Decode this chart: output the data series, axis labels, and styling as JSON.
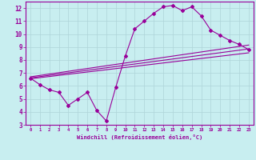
{
  "xlabel": "Windchill (Refroidissement éolien,°C)",
  "ylabel": "",
  "xlim": [
    -0.5,
    23.5
  ],
  "ylim": [
    3,
    12.5
  ],
  "xticks": [
    0,
    1,
    2,
    3,
    4,
    5,
    6,
    7,
    8,
    9,
    10,
    11,
    12,
    13,
    14,
    15,
    16,
    17,
    18,
    19,
    20,
    21,
    22,
    23
  ],
  "yticks": [
    3,
    4,
    5,
    6,
    7,
    8,
    9,
    10,
    11,
    12
  ],
  "background_color": "#c8eef0",
  "grid_color": "#aed4d8",
  "line_color": "#990099",
  "line1_x": [
    0,
    1,
    2,
    3,
    4,
    5,
    6,
    7,
    8,
    9,
    10,
    11,
    12,
    13,
    14,
    15,
    16,
    17,
    18,
    19,
    20,
    21,
    22,
    23
  ],
  "line1_y": [
    6.6,
    6.1,
    5.7,
    5.5,
    4.5,
    5.0,
    5.5,
    4.1,
    3.3,
    5.9,
    8.3,
    10.4,
    11.0,
    11.6,
    12.1,
    12.2,
    11.8,
    12.1,
    11.4,
    10.3,
    9.9,
    9.5,
    9.2,
    8.8
  ],
  "line2_x": [
    0,
    23
  ],
  "line2_y": [
    6.55,
    8.55
  ],
  "line3_x": [
    0,
    23
  ],
  "line3_y": [
    6.7,
    9.15
  ],
  "line4_x": [
    0,
    23
  ],
  "line4_y": [
    6.62,
    8.85
  ]
}
